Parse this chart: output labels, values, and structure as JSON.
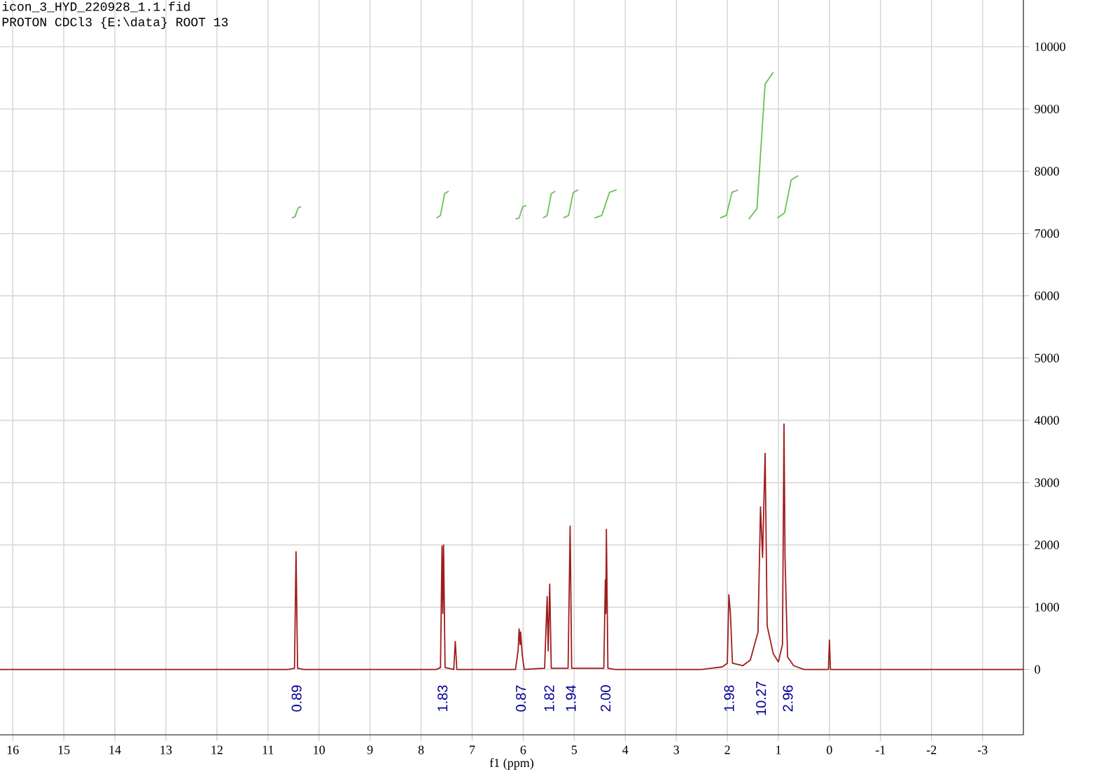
{
  "chart_data": {
    "type": "line",
    "title": "icon_3_HYD_220928_1.1.fid",
    "subtitle": "PROTON CDCl3 {E:\\data} ROOT 13",
    "xlabel": "f1 (ppm)",
    "series": [
      {
        "color": "#a01c1c",
        "x": [
          16.25,
          10.6,
          10.48,
          10.45,
          10.42,
          10.3,
          7.7,
          7.62,
          7.59,
          7.575,
          7.56,
          7.53,
          7.36,
          7.33,
          7.3,
          6.15,
          6.1,
          6.08,
          6.06,
          6.05,
          6.02,
          5.98,
          5.58,
          5.53,
          5.51,
          5.48,
          5.45,
          5.12,
          5.08,
          5.05,
          4.42,
          4.39,
          4.38,
          4.37,
          4.34,
          4.2,
          2.5,
          2.1,
          2.0,
          1.97,
          1.94,
          1.9,
          1.7,
          1.55,
          1.4,
          1.35,
          1.31,
          1.26,
          1.22,
          1.1,
          1.0,
          0.92,
          0.89,
          0.87,
          0.82,
          0.7,
          0.5,
          0.02,
          0,
          -0.02,
          -3.8
        ],
        "values": [
          0,
          0,
          20,
          1890,
          20,
          0,
          0,
          30,
          1980,
          900,
          2000,
          30,
          0,
          450,
          0,
          0,
          300,
          650,
          400,
          600,
          250,
          0,
          20,
          1170,
          300,
          1370,
          20,
          20,
          2300,
          20,
          20,
          1440,
          900,
          2250,
          20,
          0,
          0,
          40,
          100,
          1200,
          900,
          100,
          60,
          150,
          600,
          2610,
          1800,
          3470,
          700,
          250,
          120,
          400,
          3940,
          1800,
          200,
          60,
          0,
          0,
          470,
          0,
          0
        ]
      },
      {
        "color": "#6cbf5a",
        "x": [
          10.53,
          10.47,
          10.41,
          10.35,
          10.3,
          7.7,
          7.62,
          7.54,
          7.46,
          7.4,
          6.15,
          6.08,
          6.01,
          5.94,
          5.8,
          5.61,
          5.53,
          5.45,
          5.37,
          5.3,
          5.21,
          5.11,
          5.02,
          4.92,
          4.8,
          4.6,
          4.46,
          4.31,
          4.17,
          4.0,
          2.14,
          2.02,
          1.91,
          1.79,
          1.7,
          1.58,
          1.42,
          1.26,
          1.1,
          1.05,
          1.02,
          0.88,
          0.75,
          0.61
        ],
        "values": [
          7250,
          7270,
          7410,
          7430,
          null,
          7250,
          7290,
          7640,
          7680,
          null,
          7230,
          7250,
          7430,
          7450,
          null,
          7250,
          7290,
          7640,
          7680,
          null,
          7250,
          7290,
          7660,
          7700,
          null,
          7250,
          7290,
          7660,
          7700,
          null,
          7250,
          7290,
          7660,
          7700,
          null,
          7230,
          7400,
          9400,
          9590,
          null,
          7250,
          7330,
          7860,
          7930
        ]
      }
    ],
    "xlim": [
      16.25,
      -3.8
    ],
    "xticks": [
      16,
      15,
      14,
      13,
      12,
      11,
      10,
      9,
      8,
      7,
      6,
      5,
      4,
      3,
      2,
      1,
      0,
      -1,
      -2,
      -3
    ],
    "ylim": [
      -1050,
      10750
    ],
    "yticks": [
      0,
      1000,
      2000,
      3000,
      4000,
      5000,
      6000,
      7000,
      8000,
      9000,
      10000
    ],
    "grid": true,
    "annotations": [
      "0.89",
      "1.83",
      "0.87",
      "1.82",
      "1.94",
      "2.00",
      "1.98",
      "10.27",
      "2.96"
    ]
  }
}
